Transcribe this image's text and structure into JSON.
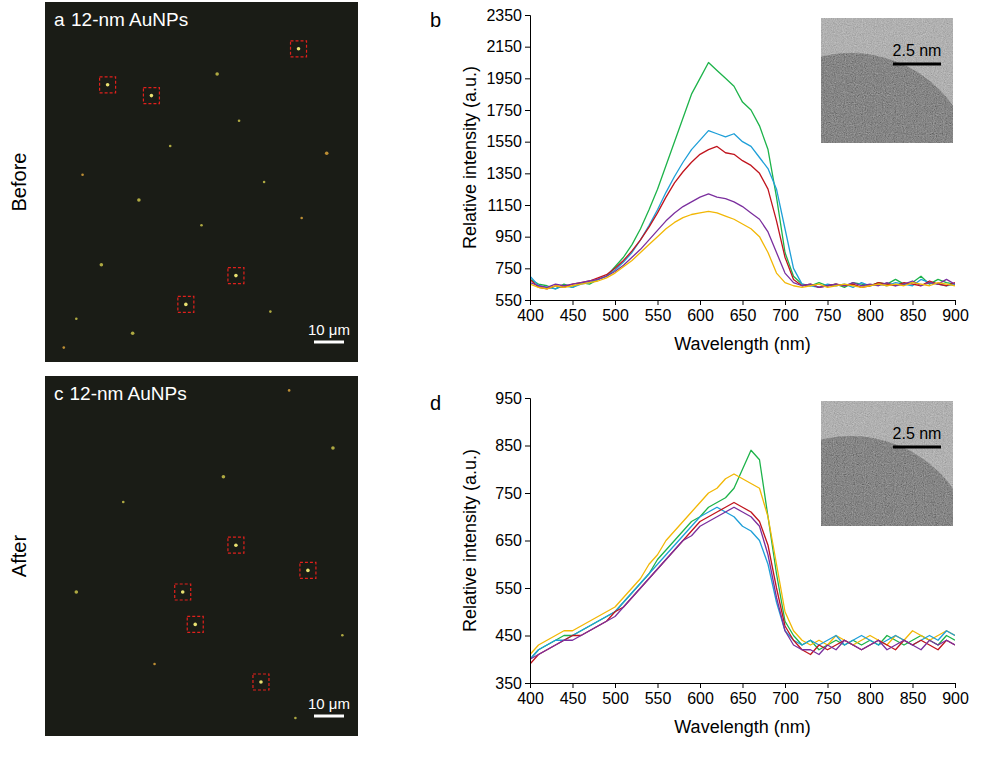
{
  "chart_data": [
    {
      "type": "image",
      "row_label": "Before",
      "panel": "a",
      "title": "12-nm AuNPs",
      "scale_bar": "10 μm"
    },
    {
      "type": "line",
      "panel": "b",
      "x_label": "Wavelength (nm)",
      "y_label": "Relative intensity (a.u.)",
      "inset_scale_bar": "2.5 nm",
      "x": [
        400,
        410,
        420,
        430,
        440,
        450,
        460,
        470,
        480,
        490,
        500,
        510,
        520,
        530,
        540,
        550,
        560,
        570,
        580,
        590,
        600,
        610,
        620,
        630,
        640,
        650,
        660,
        670,
        680,
        690,
        700,
        710,
        720,
        730,
        740,
        750,
        760,
        770,
        780,
        790,
        800,
        810,
        820,
        830,
        840,
        850,
        860,
        870,
        880,
        890,
        900
      ],
      "xlim": [
        400,
        900
      ],
      "xticks": [
        400,
        450,
        500,
        550,
        600,
        650,
        700,
        750,
        800,
        850,
        900
      ],
      "ylim": [
        550,
        2350
      ],
      "yticks": [
        550,
        750,
        950,
        1150,
        1350,
        1550,
        1750,
        1950,
        2150,
        2350
      ],
      "series": [
        {
          "color": "#1db34a",
          "values": [
            680,
            650,
            640,
            620,
            650,
            630,
            660,
            650,
            680,
            700,
            760,
            820,
            900,
            1000,
            1120,
            1250,
            1400,
            1550,
            1700,
            1850,
            1950,
            2050,
            2000,
            1950,
            1900,
            1800,
            1750,
            1650,
            1500,
            1200,
            850,
            700,
            650,
            640,
            660,
            640,
            650,
            630,
            660,
            650,
            640,
            660,
            650,
            680,
            650,
            660,
            700,
            650,
            680,
            660,
            650
          ]
        },
        {
          "color": "#1e9fd8",
          "values": [
            700,
            640,
            630,
            620,
            640,
            630,
            650,
            660,
            680,
            700,
            740,
            790,
            850,
            930,
            1020,
            1120,
            1230,
            1330,
            1420,
            1500,
            1560,
            1620,
            1600,
            1580,
            1600,
            1550,
            1520,
            1450,
            1380,
            1250,
            1000,
            750,
            650,
            640,
            630,
            650,
            640,
            650,
            630,
            660,
            640,
            650,
            640,
            660,
            650,
            640,
            680,
            660,
            650,
            640,
            650
          ]
        },
        {
          "color": "#c0141d",
          "values": [
            680,
            630,
            620,
            640,
            630,
            650,
            660,
            670,
            690,
            710,
            750,
            800,
            860,
            930,
            1010,
            1100,
            1200,
            1290,
            1360,
            1420,
            1470,
            1500,
            1520,
            1480,
            1470,
            1430,
            1400,
            1350,
            1250,
            1050,
            820,
            680,
            640,
            650,
            630,
            640,
            650,
            640,
            650,
            630,
            640,
            660,
            650,
            640,
            660,
            650,
            640,
            670,
            650,
            640,
            660
          ]
        },
        {
          "color": "#7b2f9e",
          "values": [
            660,
            640,
            630,
            650,
            640,
            650,
            660,
            670,
            680,
            700,
            730,
            770,
            820,
            870,
            930,
            990,
            1050,
            1100,
            1140,
            1170,
            1200,
            1220,
            1200,
            1190,
            1170,
            1140,
            1100,
            1060,
            980,
            850,
            720,
            660,
            640,
            650,
            630,
            640,
            650,
            640,
            660,
            640,
            650,
            640,
            660,
            640,
            650,
            670,
            640,
            660,
            650,
            680,
            650
          ]
        },
        {
          "color": "#f2b705",
          "values": [
            650,
            630,
            620,
            640,
            630,
            640,
            650,
            660,
            670,
            690,
            720,
            760,
            800,
            850,
            900,
            950,
            1000,
            1040,
            1070,
            1090,
            1100,
            1110,
            1100,
            1080,
            1060,
            1030,
            1000,
            950,
            850,
            720,
            660,
            640,
            630,
            640,
            650,
            630,
            640,
            650,
            640,
            630,
            640,
            650,
            640,
            650,
            640,
            660,
            650,
            640,
            660,
            650,
            640
          ]
        }
      ]
    },
    {
      "type": "image",
      "row_label": "After",
      "panel": "c",
      "title": "12-nm AuNPs",
      "scale_bar": "10 μm"
    },
    {
      "type": "line",
      "panel": "d",
      "x_label": "Wavelength (nm)",
      "y_label": "Relative intensity (a.u.)",
      "inset_scale_bar": "2.5 nm",
      "x": [
        400,
        410,
        420,
        430,
        440,
        450,
        460,
        470,
        480,
        490,
        500,
        510,
        520,
        530,
        540,
        550,
        560,
        570,
        580,
        590,
        600,
        610,
        620,
        630,
        640,
        650,
        660,
        670,
        680,
        690,
        700,
        710,
        720,
        730,
        740,
        750,
        760,
        770,
        780,
        790,
        800,
        810,
        820,
        830,
        840,
        850,
        860,
        870,
        880,
        890,
        900
      ],
      "xlim": [
        400,
        900
      ],
      "xticks": [
        400,
        450,
        500,
        550,
        600,
        650,
        700,
        750,
        800,
        850,
        900
      ],
      "ylim": [
        350,
        950
      ],
      "yticks": [
        350,
        450,
        550,
        650,
        750,
        850,
        950
      ],
      "series": [
        {
          "color": "#1db34a",
          "values": [
            400,
            420,
            430,
            440,
            450,
            450,
            460,
            470,
            480,
            490,
            500,
            520,
            540,
            560,
            580,
            610,
            630,
            650,
            670,
            690,
            700,
            720,
            730,
            740,
            760,
            800,
            840,
            820,
            700,
            580,
            480,
            450,
            430,
            440,
            420,
            430,
            440,
            430,
            440,
            430,
            440,
            430,
            450,
            440,
            430,
            440,
            450,
            440,
            430,
            450,
            440
          ]
        },
        {
          "color": "#f2b705",
          "values": [
            410,
            430,
            440,
            450,
            460,
            460,
            470,
            480,
            490,
            500,
            510,
            530,
            550,
            570,
            600,
            620,
            650,
            670,
            690,
            710,
            730,
            750,
            760,
            780,
            790,
            780,
            770,
            760,
            700,
            600,
            500,
            460,
            440,
            430,
            440,
            430,
            450,
            440,
            430,
            440,
            450,
            440,
            430,
            450,
            440,
            460,
            450,
            440,
            450,
            460,
            450
          ]
        },
        {
          "color": "#1e9fd8",
          "values": [
            400,
            420,
            430,
            440,
            440,
            450,
            460,
            470,
            480,
            490,
            500,
            520,
            540,
            560,
            580,
            600,
            620,
            640,
            660,
            680,
            700,
            710,
            720,
            710,
            700,
            680,
            670,
            650,
            600,
            520,
            460,
            440,
            430,
            440,
            430,
            440,
            450,
            430,
            440,
            450,
            440,
            430,
            440,
            450,
            440,
            430,
            440,
            450,
            440,
            460,
            450
          ]
        },
        {
          "color": "#c0141d",
          "values": [
            390,
            410,
            420,
            430,
            440,
            450,
            450,
            460,
            470,
            480,
            500,
            510,
            530,
            550,
            570,
            590,
            610,
            630,
            650,
            670,
            690,
            700,
            710,
            720,
            730,
            720,
            710,
            690,
            640,
            550,
            470,
            440,
            420,
            410,
            430,
            420,
            430,
            440,
            430,
            420,
            430,
            440,
            430,
            420,
            440,
            430,
            440,
            430,
            420,
            440,
            430
          ]
        },
        {
          "color": "#7b2f9e",
          "values": [
            400,
            410,
            420,
            430,
            440,
            440,
            450,
            460,
            470,
            480,
            490,
            510,
            530,
            550,
            570,
            590,
            610,
            630,
            650,
            660,
            680,
            690,
            700,
            710,
            720,
            710,
            700,
            680,
            620,
            530,
            460,
            430,
            420,
            420,
            410,
            430,
            420,
            440,
            430,
            420,
            430,
            440,
            420,
            430,
            440,
            430,
            420,
            440,
            430,
            440,
            430
          ]
        }
      ]
    }
  ]
}
